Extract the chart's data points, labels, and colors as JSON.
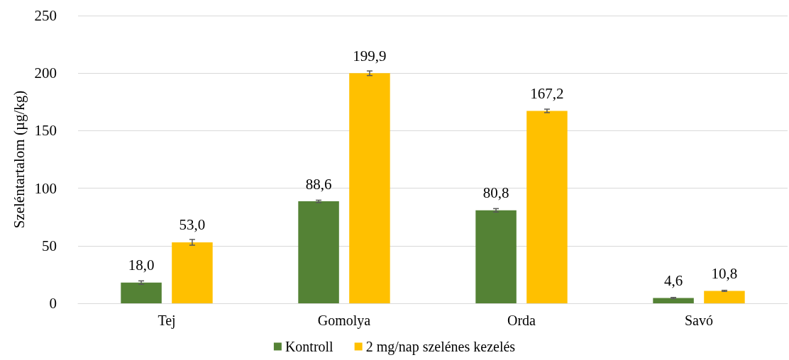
{
  "chart_data": {
    "type": "bar",
    "ylabel": "Szeléntartalom (µg/kg)",
    "categories": [
      "Tej",
      "Gomolya",
      "Orda",
      "Savó"
    ],
    "series": [
      {
        "name": "Kontroll",
        "color": "#548235",
        "values": [
          18.0,
          88.6,
          80.8,
          4.6
        ],
        "errors": [
          1.5,
          1,
          1.5,
          0.5
        ],
        "value_labels": [
          "18,0",
          "88,6",
          "80,8",
          "4,6"
        ]
      },
      {
        "name": "2 mg/nap szelénes kezelés",
        "color": "#ffc000",
        "values": [
          53.0,
          199.9,
          167.2,
          10.8
        ],
        "errors": [
          2.5,
          2,
          1.5,
          0.5
        ],
        "value_labels": [
          "53,0",
          "199,9",
          "167,2",
          "10,8"
        ]
      }
    ],
    "ylim": [
      0,
      250
    ],
    "yticks": [
      0,
      50,
      100,
      150,
      200,
      250
    ],
    "grid": "y",
    "legend": "bottom"
  }
}
